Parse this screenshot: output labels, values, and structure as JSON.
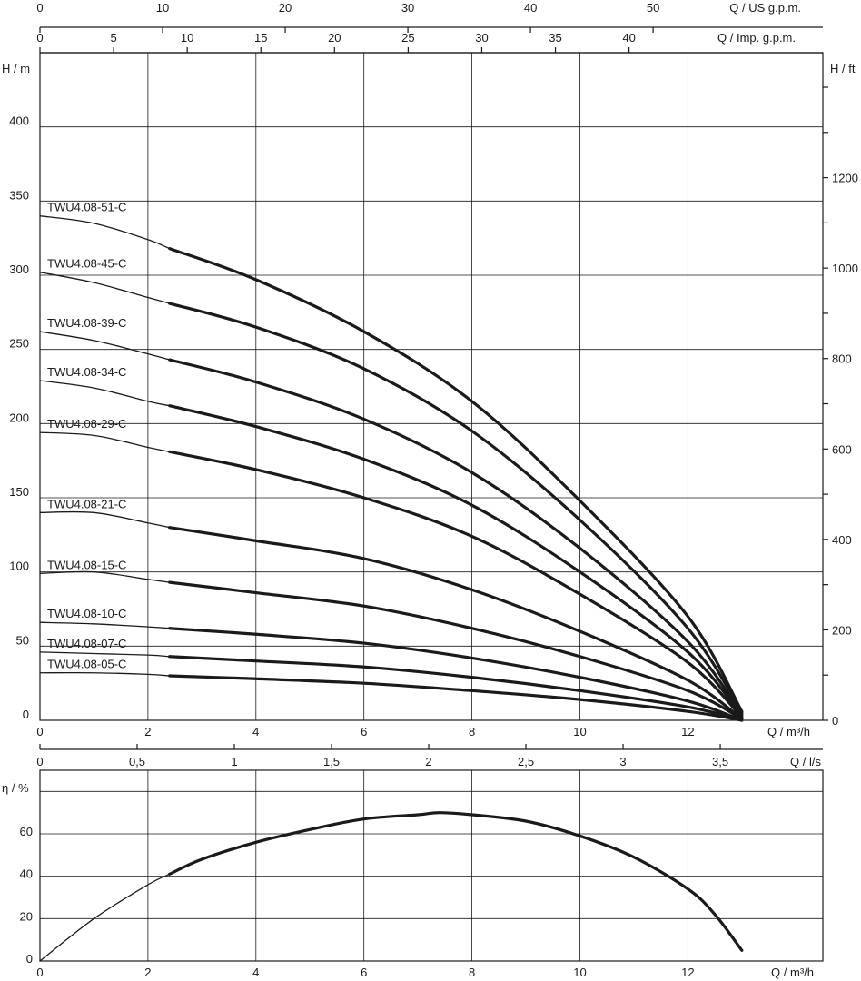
{
  "chart_data": [
    {
      "type": "line",
      "panel": "head",
      "xlabel": "Q / m³/h",
      "ylabel": "H / m",
      "ylabel_right": "H / ft",
      "xlim": [
        0,
        14.5
      ],
      "ylim": [
        0,
        450
      ],
      "grid": true,
      "x_ticks": [
        0,
        2,
        4,
        6,
        8,
        10,
        12
      ],
      "y_ticks": [
        0,
        50,
        100,
        150,
        200,
        250,
        300,
        350,
        400
      ],
      "y_right_ticks": [
        0,
        200,
        400,
        600,
        800,
        1000,
        1200
      ],
      "top_axis_us": {
        "label": "Q / US g.p.m.",
        "ticks": [
          "0",
          "10",
          "20",
          "30",
          "40",
          "50"
        ],
        "values": [
          0,
          10,
          20,
          30,
          40,
          50
        ]
      },
      "top_axis_imp": {
        "label": "Q / Imp. g.p.m.",
        "ticks": [
          "0",
          "5",
          "10",
          "15",
          "20",
          "25",
          "30",
          "35",
          "40"
        ],
        "values": [
          0,
          5,
          10,
          15,
          20,
          25,
          30,
          35,
          40
        ]
      },
      "mid_axis_ls": {
        "label": "Q / l/s",
        "ticks": [
          "0",
          "0,5",
          "1",
          "1,5",
          "2",
          "2,5",
          "3",
          "3,5"
        ],
        "values": [
          0,
          0.5,
          1,
          1.5,
          2,
          2.5,
          3,
          3.5
        ]
      },
      "operating_range": [
        2.4,
        13.0
      ],
      "series": [
        {
          "name": "TWU4.08-51-C",
          "x": [
            0,
            1,
            2,
            2.4,
            4,
            6,
            8,
            10,
            12,
            13
          ],
          "y": [
            340,
            335,
            324,
            318,
            297,
            262,
            215,
            148,
            70,
            6
          ]
        },
        {
          "name": "TWU4.08-45-C",
          "x": [
            0,
            1,
            2,
            2.4,
            4,
            6,
            8,
            10,
            12,
            13
          ],
          "y": [
            302,
            295,
            285,
            281,
            265,
            237,
            195,
            135,
            62,
            5
          ]
        },
        {
          "name": "TWU4.08-39-C",
          "x": [
            0,
            1,
            2,
            2.4,
            4,
            6,
            8,
            10,
            12,
            13
          ],
          "y": [
            262,
            256,
            247,
            243,
            228,
            203,
            167,
            116,
            53,
            4
          ]
        },
        {
          "name": "TWU4.08-34-C",
          "x": [
            0,
            1,
            2,
            2.4,
            4,
            6,
            8,
            10,
            12,
            13
          ],
          "y": [
            229,
            224,
            215,
            212,
            198,
            176,
            145,
            100,
            46,
            3
          ]
        },
        {
          "name": "TWU4.08-29-C",
          "x": [
            0,
            1,
            2,
            2.4,
            4,
            6,
            8,
            10,
            12,
            13
          ],
          "y": [
            194,
            192,
            184,
            181,
            169,
            150,
            124,
            85,
            39,
            2
          ]
        },
        {
          "name": "TWU4.08-21-C",
          "x": [
            0,
            1,
            2,
            2.4,
            4,
            6,
            8,
            10,
            12,
            13
          ],
          "y": [
            140,
            140,
            133,
            130,
            121,
            109,
            88,
            60,
            27,
            1
          ]
        },
        {
          "name": "TWU4.08-15-C",
          "x": [
            0,
            1,
            2,
            2.4,
            4,
            6,
            8,
            10,
            12,
            13
          ],
          "y": [
            99,
            100,
            95,
            93,
            86,
            77,
            62,
            43,
            20,
            1
          ]
        },
        {
          "name": "TWU4.08-10-C",
          "x": [
            0,
            1,
            2,
            2.4,
            4,
            6,
            8,
            10,
            12,
            13
          ],
          "y": [
            66,
            65,
            63,
            62,
            58,
            52,
            42,
            29,
            13,
            0
          ]
        },
        {
          "name": "TWU4.08-07-C",
          "x": [
            0,
            1,
            2,
            2.4,
            4,
            6,
            8,
            10,
            12,
            13
          ],
          "y": [
            46,
            45,
            44,
            43,
            40,
            36,
            29,
            20,
            9,
            0
          ]
        },
        {
          "name": "TWU4.08-05-C",
          "x": [
            0,
            1,
            2,
            2.4,
            4,
            6,
            8,
            10,
            12,
            13
          ],
          "y": [
            32,
            32,
            31,
            30,
            28,
            25,
            20,
            14,
            6,
            0
          ]
        }
      ]
    },
    {
      "type": "line",
      "panel": "efficiency",
      "xlabel": "Q / m³/h",
      "ylabel": "η / %",
      "xlim": [
        0,
        14.5
      ],
      "ylim": [
        0,
        90
      ],
      "grid": true,
      "x_ticks": [
        0,
        2,
        4,
        6,
        8,
        10,
        12
      ],
      "y_ticks": [
        0,
        20,
        40,
        60
      ],
      "operating_range": [
        2.4,
        13.0
      ],
      "series": [
        {
          "x": [
            0,
            1,
            2,
            2.4,
            3,
            4,
            5,
            6,
            7,
            7.4,
            8,
            9,
            10,
            11,
            12,
            12.5,
            13
          ],
          "y": [
            0,
            20,
            36,
            41,
            48,
            56,
            62,
            67,
            69,
            70,
            69,
            66,
            59,
            49,
            34,
            22,
            5
          ]
        }
      ]
    }
  ]
}
